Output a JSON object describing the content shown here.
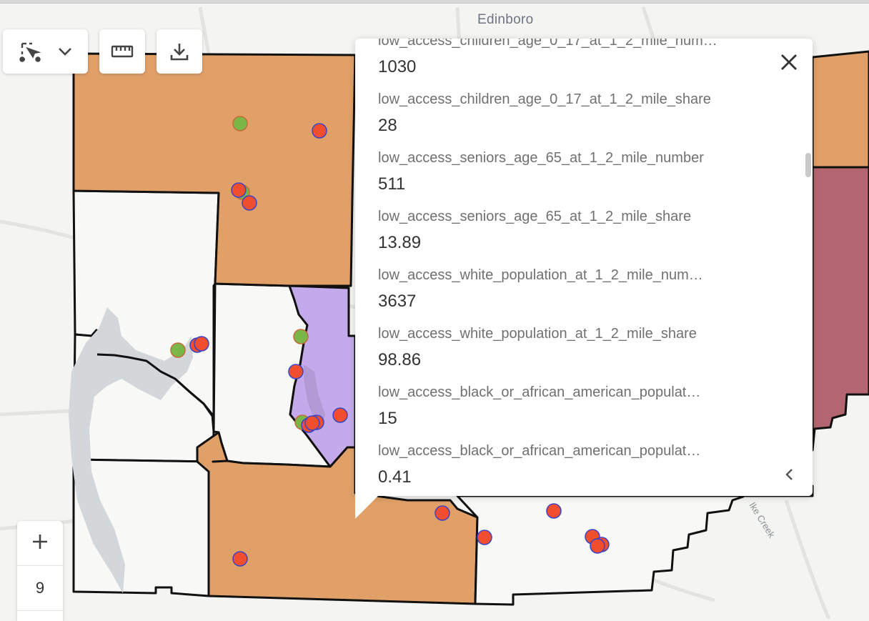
{
  "map": {
    "place_label": "Edinboro",
    "creek_label": "Ike Creek",
    "zoom_level": "9",
    "colors": {
      "base": "#f4f4f2",
      "road": "#e3e3e0",
      "water": "#d3d7da",
      "tract_orange": "#e0a068",
      "tract_purple": "#c3abeb",
      "tract_maroon": "#b36670",
      "tract_white": "#f8f8f6",
      "boundary": "#111111",
      "point_green": "#7ab648",
      "point_red": "#f04e2e",
      "point_stroke": "#3a44c8"
    },
    "icons": [
      "select-tool-icon",
      "chevron-down-icon",
      "ruler-icon",
      "download-icon",
      "zoom-in-icon",
      "close-icon",
      "chevron-left-icon"
    ]
  },
  "popup": {
    "fields": [
      {
        "name": "low_access_children_age_0_17_at_1_2_mile_num…",
        "value": "1030"
      },
      {
        "name": "low_access_children_age_0_17_at_1_2_mile_share",
        "value": "28"
      },
      {
        "name": "low_access_seniors_age_65_at_1_2_mile_number",
        "value": "511"
      },
      {
        "name": "low_access_seniors_age_65_at_1_2_mile_share",
        "value": "13.89"
      },
      {
        "name": "low_access_white_population_at_1_2_mile_num…",
        "value": "3637"
      },
      {
        "name": "low_access_white_population_at_1_2_mile_share",
        "value": "98.86"
      },
      {
        "name": "low_access_black_or_african_american_populat…",
        "value": "15"
      },
      {
        "name": "low_access_black_or_african_american_populat…",
        "value": "0.41"
      }
    ]
  }
}
